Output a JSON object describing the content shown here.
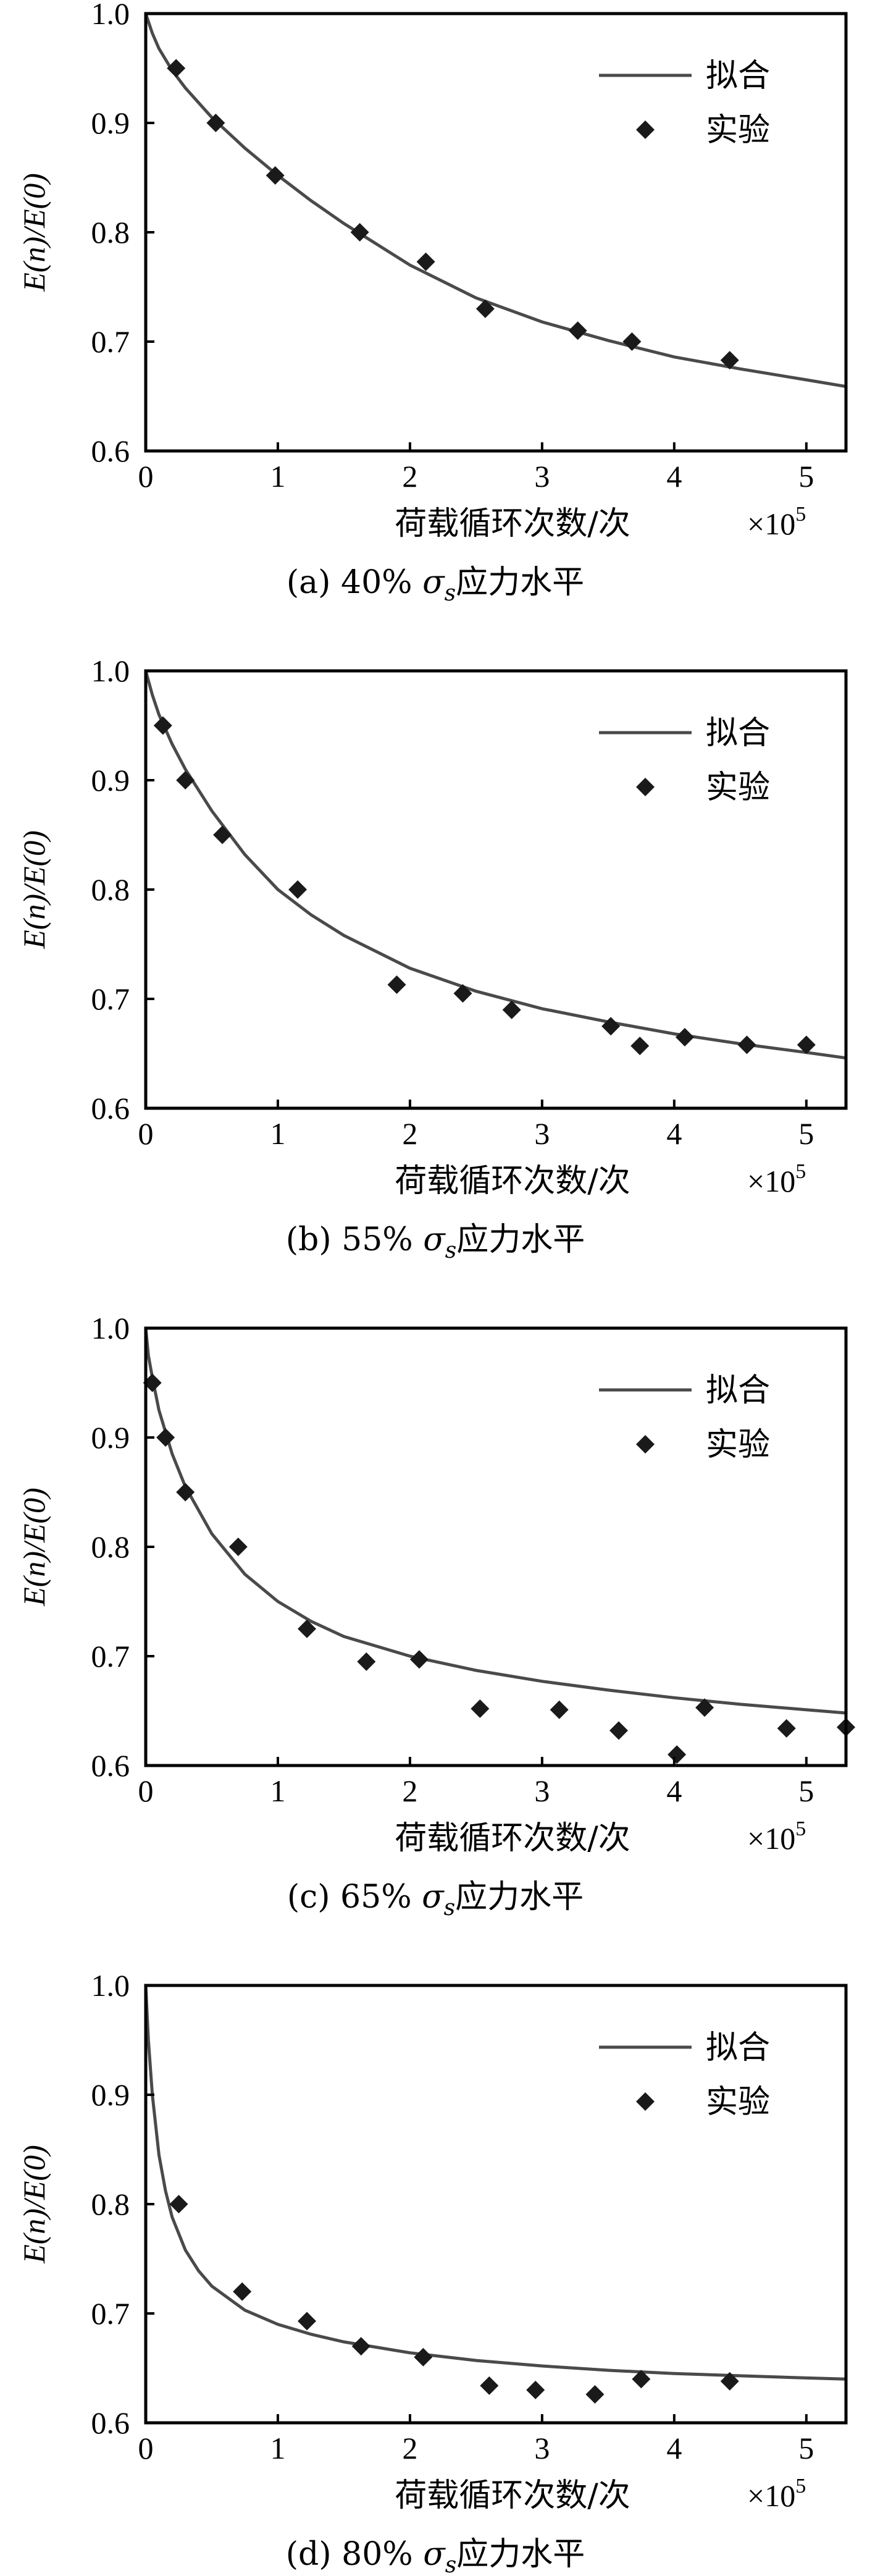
{
  "colors": {
    "fit_line": "#4a4a4a",
    "marker": "#1a1a1a",
    "axes": "#000000"
  },
  "icons": {
    "marker": "diamond-icon",
    "fit": "line-icon"
  },
  "chart_data": [
    {
      "type": "scatter",
      "caption": "(a) 40% σs应力水平",
      "caption_prefix": "(a) 40% ",
      "caption_symbol": "σ",
      "caption_subscript": "s",
      "caption_suffix": "应力水平",
      "xlabel": "荷载循环次数/次",
      "x_multiplier": "×10",
      "x_multiplier_exp": "5",
      "ylabel": "E(n)/E(0)",
      "xlim": [
        0,
        5.3
      ],
      "ylim": [
        0.6,
        1.0
      ],
      "xticks": [
        "0",
        "1",
        "2",
        "3",
        "4",
        "5"
      ],
      "yticks": [
        "0.6",
        "0.7",
        "0.8",
        "0.9",
        "1.0"
      ],
      "legend_position": "top-right",
      "series": [
        {
          "name": "拟合",
          "kind": "line",
          "x": [
            0,
            0.05,
            0.1,
            0.2,
            0.3,
            0.5,
            0.75,
            1.0,
            1.25,
            1.5,
            2.0,
            2.5,
            3.0,
            3.5,
            4.0,
            4.5,
            5.0,
            5.3
          ],
          "y": [
            1.0,
            0.982,
            0.968,
            0.948,
            0.932,
            0.905,
            0.877,
            0.852,
            0.829,
            0.808,
            0.77,
            0.74,
            0.718,
            0.701,
            0.686,
            0.675,
            0.665,
            0.659
          ]
        },
        {
          "name": "实验",
          "kind": "scatter",
          "x": [
            0.23,
            0.53,
            0.98,
            1.62,
            2.12,
            2.57,
            3.27,
            3.68,
            4.42
          ],
          "y": [
            0.95,
            0.9,
            0.852,
            0.8,
            0.773,
            0.73,
            0.71,
            0.7,
            0.683
          ]
        }
      ]
    },
    {
      "type": "scatter",
      "caption": "(b) 55% σs应力水平",
      "caption_prefix": "(b) 55% ",
      "caption_symbol": "σ",
      "caption_subscript": "s",
      "caption_suffix": "应力水平",
      "xlabel": "荷载循环次数/次",
      "x_multiplier": "×10",
      "x_multiplier_exp": "5",
      "ylabel": "E(n)/E(0)",
      "xlim": [
        0,
        5.3
      ],
      "ylim": [
        0.6,
        1.0
      ],
      "xticks": [
        "0",
        "1",
        "2",
        "3",
        "4",
        "5"
      ],
      "yticks": [
        "0.6",
        "0.7",
        "0.8",
        "0.9",
        "1.0"
      ],
      "legend_position": "top-right",
      "series": [
        {
          "name": "拟合",
          "kind": "line",
          "x": [
            0,
            0.05,
            0.1,
            0.2,
            0.3,
            0.5,
            0.75,
            1.0,
            1.25,
            1.5,
            2.0,
            2.5,
            3.0,
            3.5,
            4.0,
            4.5,
            5.0,
            5.3
          ],
          "y": [
            1.0,
            0.978,
            0.96,
            0.933,
            0.91,
            0.872,
            0.832,
            0.8,
            0.777,
            0.758,
            0.728,
            0.707,
            0.691,
            0.679,
            0.668,
            0.659,
            0.651,
            0.646
          ]
        },
        {
          "name": "实验",
          "kind": "scatter",
          "x": [
            0.13,
            0.3,
            0.58,
            1.15,
            1.9,
            2.4,
            2.77,
            3.52,
            3.74,
            4.08,
            4.55,
            5.0
          ],
          "y": [
            0.95,
            0.9,
            0.85,
            0.8,
            0.713,
            0.705,
            0.69,
            0.675,
            0.657,
            0.665,
            0.658,
            0.658
          ]
        }
      ]
    },
    {
      "type": "scatter",
      "caption": "(c) 65% σs应力水平",
      "caption_prefix": "(c) 65% ",
      "caption_symbol": "σ",
      "caption_subscript": "s",
      "caption_suffix": "应力水平",
      "xlabel": "荷载循环次数/次",
      "x_multiplier": "×10",
      "x_multiplier_exp": "5",
      "ylabel": "E(n)/E(0)",
      "xlim": [
        0,
        5.3
      ],
      "ylim": [
        0.6,
        1.0
      ],
      "xticks": [
        "0",
        "1",
        "2",
        "3",
        "4",
        "5"
      ],
      "yticks": [
        "0.6",
        "0.7",
        "0.8",
        "0.9",
        "1.0"
      ],
      "legend_position": "top-right",
      "series": [
        {
          "name": "拟合",
          "kind": "line",
          "x": [
            0,
            0.02,
            0.05,
            0.1,
            0.2,
            0.3,
            0.5,
            0.75,
            1.0,
            1.25,
            1.5,
            2.0,
            2.5,
            3.0,
            3.5,
            4.0,
            4.5,
            5.0,
            5.3
          ],
          "y": [
            1.0,
            0.975,
            0.955,
            0.925,
            0.885,
            0.855,
            0.812,
            0.775,
            0.75,
            0.732,
            0.718,
            0.7,
            0.687,
            0.677,
            0.669,
            0.662,
            0.656,
            0.651,
            0.648
          ]
        },
        {
          "name": "实验",
          "kind": "scatter",
          "x": [
            0.05,
            0.15,
            0.3,
            0.7,
            1.22,
            1.67,
            2.07,
            2.53,
            3.13,
            3.58,
            4.02,
            4.23,
            4.85,
            5.3
          ],
          "y": [
            0.95,
            0.9,
            0.85,
            0.8,
            0.725,
            0.695,
            0.697,
            0.652,
            0.651,
            0.632,
            0.61,
            0.653,
            0.634,
            0.635
          ]
        }
      ]
    },
    {
      "type": "scatter",
      "caption": "(d) 80% σs应力水平",
      "caption_prefix": "(d) 80% ",
      "caption_symbol": "σ",
      "caption_subscript": "s",
      "caption_suffix": "应力水平",
      "xlabel": "荷载循环次数/次",
      "x_multiplier": "×10",
      "x_multiplier_exp": "5",
      "ylabel": "E(n)/E(0)",
      "xlim": [
        0,
        5.3
      ],
      "ylim": [
        0.6,
        1.0
      ],
      "xticks": [
        "0",
        "1",
        "2",
        "3",
        "4",
        "5"
      ],
      "yticks": [
        "0.6",
        "0.7",
        "0.8",
        "0.9",
        "1.0"
      ],
      "legend_position": "top-right",
      "series": [
        {
          "name": "拟合",
          "kind": "line",
          "x": [
            0,
            0.02,
            0.05,
            0.1,
            0.15,
            0.2,
            0.3,
            0.4,
            0.5,
            0.75,
            1.0,
            1.25,
            1.5,
            2.0,
            2.5,
            3.0,
            3.5,
            4.0,
            4.5,
            5.0,
            5.3
          ],
          "y": [
            1.0,
            0.95,
            0.9,
            0.845,
            0.812,
            0.788,
            0.758,
            0.739,
            0.725,
            0.703,
            0.69,
            0.681,
            0.674,
            0.664,
            0.657,
            0.652,
            0.648,
            0.645,
            0.643,
            0.641,
            0.64
          ]
        },
        {
          "name": "实验",
          "kind": "scatter",
          "x": [
            0.25,
            0.73,
            1.22,
            1.63,
            2.1,
            2.6,
            2.95,
            3.4,
            3.75,
            4.42
          ],
          "y": [
            0.8,
            0.72,
            0.693,
            0.67,
            0.66,
            0.634,
            0.63,
            0.626,
            0.64,
            0.638
          ]
        }
      ]
    }
  ]
}
